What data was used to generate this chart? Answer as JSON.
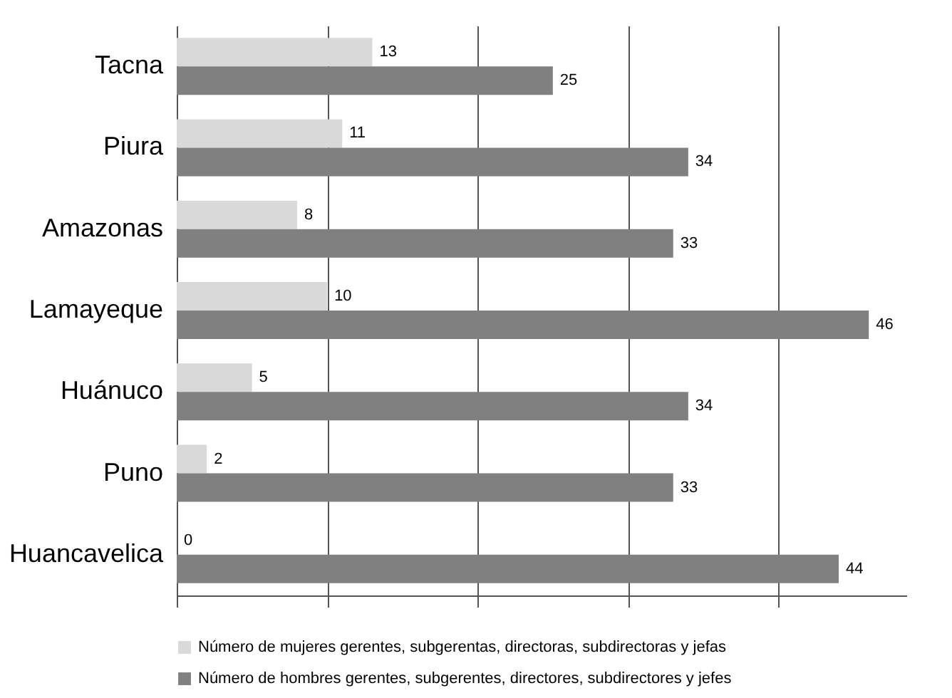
{
  "chart_data": {
    "type": "bar",
    "orientation": "horizontal",
    "categories": [
      "Tacna",
      "Piura",
      "Amazonas",
      "Lamayeque",
      "Huánuco",
      "Puno",
      "Huancavelica"
    ],
    "series": [
      {
        "name": "Número de mujeres gerentes, subgerentas, directoras, subdirectoras y jefas",
        "color": "#d9d9d9",
        "values": [
          13,
          11,
          8,
          10,
          5,
          2,
          0
        ]
      },
      {
        "name": "Número de hombres gerentes, subgerentes, directores, subdirectores y jefes",
        "color": "#808080",
        "values": [
          25,
          34,
          33,
          46,
          34,
          33,
          44
        ]
      }
    ],
    "xlim": [
      0,
      48.5
    ],
    "xticks": [
      {
        "value": 0,
        "label": null
      },
      {
        "value": 10,
        "label": null
      },
      {
        "value": 20,
        "label": null
      },
      {
        "value": 30,
        "label": null
      },
      {
        "value": 40,
        "label": null
      }
    ],
    "tick_labels": "y",
    "grid": "x",
    "data_labels": true,
    "legend": "bottom"
  }
}
